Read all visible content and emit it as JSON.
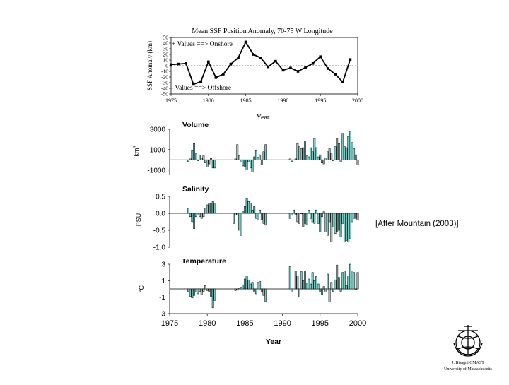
{
  "citation": "[After Mountain (2003)]",
  "logo": {
    "line1": "J. Bisagni CMAST",
    "line2": "University of Massachusetts",
    "icon": "anchor-seal-icon"
  },
  "colors": {
    "bar_fill": "#7fc5c0",
    "bar_stroke": "#000000",
    "line": "#000000"
  },
  "chart_data": [
    {
      "type": "line",
      "title": "Mean SSF Position Anomaly, 70-75 W Longitude",
      "xlabel": "Year",
      "ylabel": "SSF Anomaly (km)",
      "xlim": [
        1975,
        2000
      ],
      "ylim": [
        -50,
        50
      ],
      "xticks": [
        1975,
        1980,
        1985,
        1990,
        1995,
        2000
      ],
      "yticks": [
        50,
        40,
        30,
        20,
        10,
        0,
        -10,
        -20,
        -30,
        -40,
        -50
      ],
      "annotations": [
        "+ Values ==> Onshore",
        "- Values ==> Offshore"
      ],
      "zero_line": "dashed",
      "x": [
        1975,
        1976,
        1977,
        1978,
        1979,
        1980,
        1981,
        1982,
        1983,
        1984,
        1985,
        1986,
        1987,
        1988,
        1989,
        1990,
        1991,
        1992,
        1993,
        1994,
        1995,
        1996,
        1997,
        1998,
        1999
      ],
      "y": [
        2,
        3,
        4,
        -33,
        -28,
        7,
        -21,
        -15,
        3,
        14,
        42,
        20,
        14,
        -2,
        8,
        -8,
        -4,
        -10,
        -3,
        4,
        16,
        -5,
        -15,
        -29,
        11
      ]
    },
    {
      "type": "bar",
      "title": "Volume",
      "xlabel": "",
      "ylabel": "km3",
      "xlim": [
        1975,
        2000
      ],
      "ylim": [
        -1500,
        3000
      ],
      "yticks": [
        3000,
        1000,
        -1000
      ],
      "x": [
        1977.5,
        1977.75,
        1978.0,
        1978.25,
        1978.5,
        1978.75,
        1979.0,
        1979.25,
        1979.5,
        1979.75,
        1980.0,
        1980.25,
        1980.5,
        1980.75,
        1981.0,
        1983.75,
        1984.0,
        1984.25,
        1984.5,
        1984.75,
        1985.0,
        1985.25,
        1985.5,
        1985.75,
        1986.0,
        1986.25,
        1986.5,
        1986.75,
        1987.0,
        1987.25,
        1987.5,
        1987.75,
        1991.0,
        1991.25,
        1991.75,
        1992.0,
        1992.25,
        1992.5,
        1992.75,
        1993.0,
        1993.25,
        1993.5,
        1993.75,
        1994.0,
        1994.25,
        1994.5,
        1994.75,
        1995.0,
        1995.25,
        1995.5,
        1995.75,
        1996.0,
        1996.25,
        1996.5,
        1996.75,
        1997.0,
        1997.25,
        1997.5,
        1997.75,
        1998.0,
        1998.25,
        1998.5,
        1998.75,
        1999.0,
        1999.25,
        1999.5,
        1999.75,
        2000.0
      ],
      "values": [
        -150,
        100,
        900,
        1600,
        600,
        -100,
        450,
        200,
        400,
        -300,
        -700,
        -400,
        150,
        -800,
        -800,
        100,
        1500,
        400,
        -200,
        -600,
        -700,
        -1000,
        -200,
        -800,
        -1200,
        300,
        900,
        250,
        500,
        -500,
        800,
        1500,
        100,
        -150,
        100,
        1600,
        1300,
        1100,
        1200,
        1850,
        400,
        300,
        1200,
        800,
        2100,
        1200,
        300,
        500,
        -300,
        -400,
        200,
        800,
        1100,
        600,
        -100,
        1300,
        2100,
        1600,
        -200,
        2600,
        1300,
        1200,
        2300,
        2800,
        1700,
        1100,
        500,
        -500
      ]
    },
    {
      "type": "bar",
      "title": "Salinity",
      "xlabel": "",
      "ylabel": "PSU",
      "xlim": [
        1975,
        2000
      ],
      "ylim": [
        -1.0,
        0.5
      ],
      "yticks": [
        0.5,
        0.0,
        -0.5,
        -1.0
      ],
      "x": [
        1977.5,
        1977.75,
        1978.0,
        1978.25,
        1978.5,
        1978.75,
        1979.0,
        1979.25,
        1979.5,
        1979.75,
        1980.0,
        1980.25,
        1980.5,
        1980.75,
        1981.0,
        1983.5,
        1983.75,
        1984.0,
        1984.25,
        1984.5,
        1984.75,
        1985.0,
        1985.25,
        1985.5,
        1985.75,
        1986.0,
        1986.25,
        1986.5,
        1986.75,
        1987.0,
        1987.25,
        1987.5,
        1987.75,
        1991.0,
        1991.25,
        1991.5,
        1991.75,
        1992.0,
        1992.25,
        1992.5,
        1992.75,
        1993.0,
        1993.25,
        1993.5,
        1993.75,
        1994.0,
        1994.25,
        1994.5,
        1994.75,
        1995.0,
        1995.25,
        1995.5,
        1995.75,
        1996.0,
        1996.25,
        1996.5,
        1996.75,
        1997.0,
        1997.25,
        1997.5,
        1997.75,
        1998.0,
        1998.25,
        1998.5,
        1998.75,
        1999.0,
        1999.25,
        1999.5,
        1999.75,
        2000.0
      ],
      "values": [
        0.15,
        -0.1,
        -0.25,
        -0.45,
        -0.1,
        -0.05,
        -0.1,
        -0.15,
        -0.1,
        0.15,
        0.25,
        0.3,
        0.3,
        0.35,
        0.3,
        -0.3,
        -0.05,
        -0.05,
        -0.5,
        -0.65,
        0.05,
        0.2,
        0.45,
        0.35,
        0.3,
        0.1,
        0.2,
        -0.15,
        -0.2,
        0.1,
        -0.2,
        -0.3,
        -0.35,
        -0.15,
        -0.05,
        0.1,
        -0.05,
        -0.25,
        -0.3,
        0.0,
        -0.4,
        -0.3,
        -0.35,
        0.1,
        -0.15,
        -0.25,
        -0.3,
        0.1,
        -0.3,
        -0.55,
        -0.1,
        0.05,
        -0.55,
        -0.65,
        -0.25,
        -0.85,
        -0.4,
        -0.6,
        -0.55,
        -0.5,
        -0.7,
        -0.3,
        -0.85,
        -0.8,
        -0.85,
        -0.75,
        -0.25,
        -0.15,
        -0.15,
        -0.2
      ]
    },
    {
      "type": "bar",
      "title": "Temperature",
      "xlabel": "Year",
      "ylabel": "°C",
      "xlim": [
        1975,
        2000
      ],
      "ylim": [
        -3,
        3
      ],
      "xticks": [
        1975,
        1980,
        1985,
        1990,
        1995,
        2000
      ],
      "yticks": [
        3,
        1,
        -1,
        -3
      ],
      "x": [
        1977.5,
        1977.75,
        1978.0,
        1978.25,
        1978.5,
        1978.75,
        1979.0,
        1979.25,
        1979.5,
        1979.75,
        1980.0,
        1980.25,
        1980.5,
        1980.75,
        1981.0,
        1983.75,
        1984.0,
        1984.25,
        1984.5,
        1984.75,
        1985.0,
        1985.25,
        1985.5,
        1985.75,
        1986.0,
        1986.25,
        1986.5,
        1986.75,
        1987.0,
        1987.25,
        1987.5,
        1987.75,
        1991.0,
        1991.25,
        1991.75,
        1992.0,
        1992.25,
        1992.5,
        1992.75,
        1993.0,
        1993.25,
        1993.5,
        1993.75,
        1994.0,
        1994.25,
        1994.5,
        1994.75,
        1995.0,
        1995.25,
        1995.5,
        1995.75,
        1996.0,
        1996.25,
        1996.5,
        1996.75,
        1997.0,
        1997.25,
        1997.5,
        1997.75,
        1998.0,
        1998.25,
        1998.5,
        1998.75,
        1999.0,
        1999.25,
        1999.5,
        1999.75,
        2000.0
      ],
      "values": [
        -0.3,
        -0.9,
        -1.1,
        -0.8,
        -0.4,
        -0.6,
        -0.3,
        -0.7,
        -0.3,
        0.4,
        -0.2,
        -0.3,
        -0.9,
        -2.3,
        -1.4,
        -0.2,
        -0.1,
        0.1,
        0.2,
        0.5,
        1.2,
        1.6,
        1.1,
        0.6,
        0.8,
        -0.4,
        -0.6,
        0.8,
        0.9,
        -0.3,
        -0.8,
        -1.5,
        2.7,
        -0.4,
        2.2,
        1.6,
        -1.0,
        2.1,
        1.0,
        2.2,
        0.7,
        1.2,
        0.6,
        2.0,
        1.0,
        1.5,
        0.6,
        -0.3,
        -0.7,
        0.3,
        -0.4,
        1.8,
        -1.6,
        0.8,
        -0.3,
        1.1,
        2.9,
        1.4,
        -0.3,
        2.0,
        2.2,
        0.4,
        1.6,
        3.0,
        2.2,
        2.0,
        -0.1,
        2.0
      ]
    }
  ]
}
